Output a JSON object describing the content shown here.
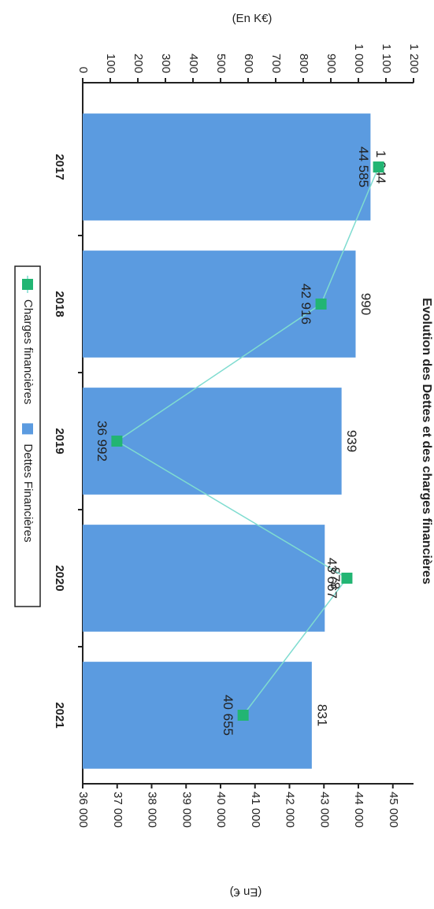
{
  "chart_data": {
    "type": "bar_line",
    "title": "Evolution des Dettes et des charges financières",
    "y_label": "(En K€)",
    "y2_label": "(En €)",
    "categories": [
      "2017",
      "2018",
      "2019",
      "2020",
      "2021"
    ],
    "series": [
      {
        "name": "Dettes Financières",
        "type": "bar",
        "color": "#5b9be0",
        "values": [
          1044,
          990,
          939,
          878,
          831
        ],
        "value_labels": [
          "1 044",
          "990",
          "939",
          "878",
          "831"
        ]
      },
      {
        "name": "Charges financières",
        "type": "line",
        "axis": "y2",
        "color": "#22b573",
        "values": [
          44585,
          42916,
          36992,
          43667,
          40655
        ],
        "value_labels": [
          "44 585",
          "42 916",
          "36 992",
          "43 667",
          "40 655"
        ]
      }
    ],
    "ylim": [
      0,
      1200
    ],
    "yticks": [
      0,
      100,
      200,
      300,
      400,
      500,
      600,
      700,
      800,
      900,
      {
        "value": 1000,
        "label": "1 000"
      },
      {
        "value": 1100,
        "label": "1 100"
      },
      {
        "value": 1200,
        "label": "1 200"
      }
    ],
    "y2lim": [
      36000,
      45600
    ],
    "y2ticks": [
      {
        "value": 36000,
        "label": "36 000"
      },
      {
        "value": 37000,
        "label": "37 000"
      },
      {
        "value": 38000,
        "label": "38 000"
      },
      {
        "value": 39000,
        "label": "39 000"
      },
      {
        "value": 40000,
        "label": "40 000"
      },
      {
        "value": 41000,
        "label": "41 000"
      },
      {
        "value": 42000,
        "label": "42 000"
      },
      {
        "value": 43000,
        "label": "43 000"
      },
      {
        "value": 44000,
        "label": "44 000"
      },
      {
        "value": 45000,
        "label": "45 000"
      }
    ],
    "legend": "bottom"
  }
}
